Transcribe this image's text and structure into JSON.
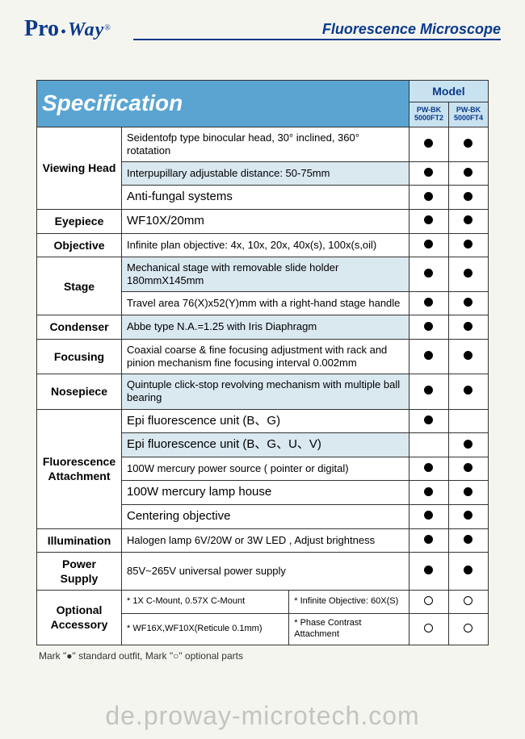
{
  "header": {
    "logo_pro": "Pro",
    "logo_way": "Way",
    "title": "Fluorescence Microscope"
  },
  "table": {
    "spec_header": "Specification",
    "model_header": "Model",
    "model_sub1": "PW-BK 5000FT2",
    "model_sub2": "PW-BK 5000FT4"
  },
  "rows": {
    "viewing_head_label": "Viewing Head",
    "vh_r1": "Seidentofp type binocular head, 30° inclined, 360° rotatation",
    "vh_r2": "Interpupillary adjustable distance: 50-75mm",
    "vh_r3": "Anti-fungal systems",
    "eyepiece_label": "Eyepiece",
    "eyepiece_desc": "WF10X/20mm",
    "objective_label": "Objective",
    "objective_desc": "Infinite plan objective: 4x, 10x, 20x, 40x(s), 100x(s,oil)",
    "stage_label": "Stage",
    "stage_r1": "Mechanical stage with removable slide holder 180mmX145mm",
    "stage_r2": "Travel area 76(X)x52(Y)mm with a right-hand stage handle",
    "condenser_label": "Condenser",
    "condenser_desc": "Abbe type N.A.=1.25 with Iris Diaphragm",
    "focusing_label": "Focusing",
    "focusing_desc": "Coaxial coarse & fine focusing adjustment with rack and pinion mechanism fine focusing interval 0.002mm",
    "nosepiece_label": "Nosepiece",
    "nosepiece_desc": "Quintuple click-stop revolving mechanism with multiple ball bearing",
    "fluor_label": "Fluorescence Attachment",
    "fl_r1": "Epi fluorescence unit (B、G)",
    "fl_r2": "Epi fluorescence unit (B、G、U、V)",
    "fl_r3": "100W mercury power source ( pointer or digital)",
    "fl_r4": "100W mercury lamp house",
    "fl_r5": "Centering objective",
    "illum_label": "Illumination",
    "illum_desc": "Halogen lamp 6V/20W or 3W LED , Adjust brightness",
    "power_label": "Power Supply",
    "power_desc": "85V~265V universal power supply",
    "opt_label": "Optional Accessory",
    "opt_r1a": "* 1X C-Mount, 0.57X C-Mount",
    "opt_r1b": "* Infinite Objective: 60X(S)",
    "opt_r2a": "* WF16X,WF10X(Reticule 0.1mm)",
    "opt_r2b": "* Phase Contrast Attachment"
  },
  "note": "Mark \"●\" standard outfit, Mark \"○\" optional parts",
  "watermark": "de.proway-microtech.com"
}
